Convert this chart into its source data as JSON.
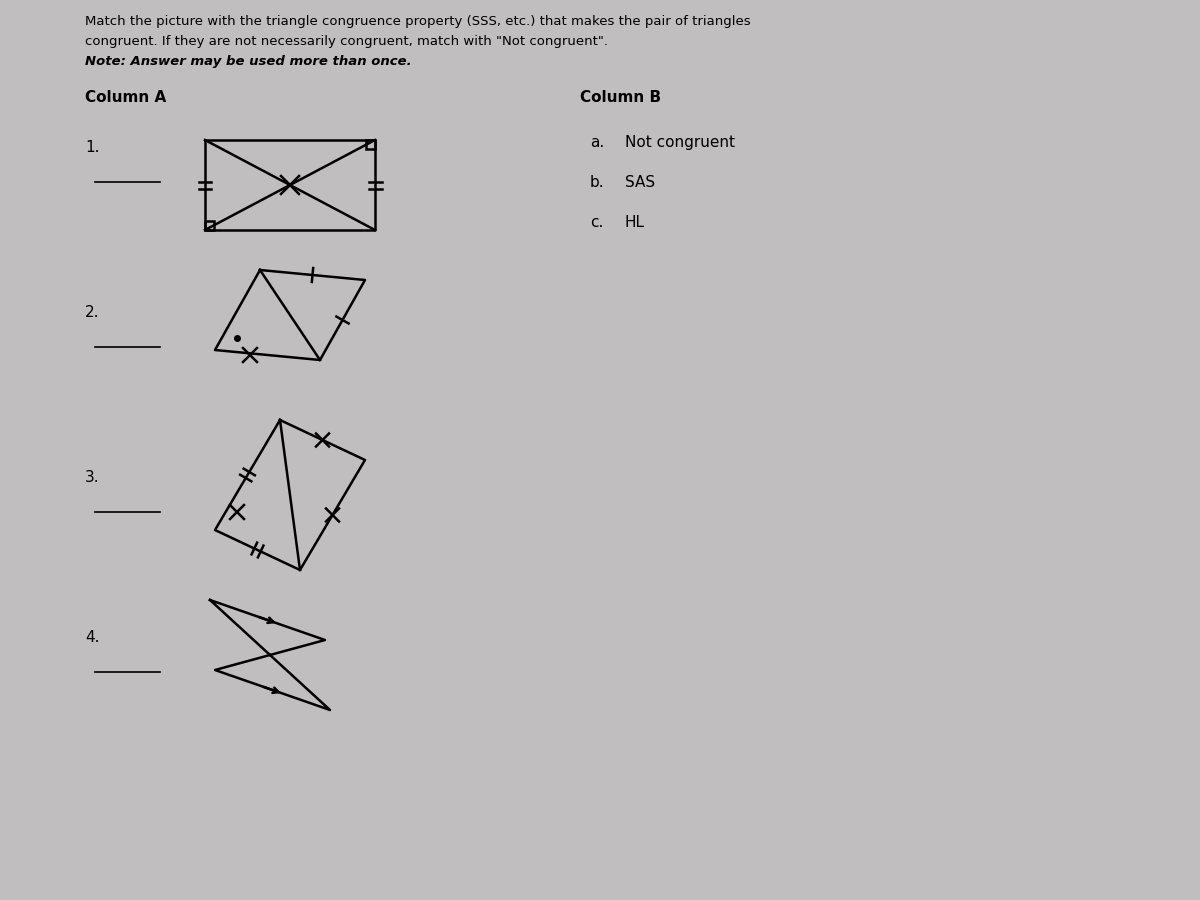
{
  "bg_color": "#c0bebe",
  "title_line1": "Match the picture with the triangle congruence property (SSS, etc.) that makes the pair of triangles",
  "title_line2": "congruent. If they are not necessarily congruent, match with \"Not congruent\".",
  "title_line3": "Note: Answer may be used more than once.",
  "col_a_label": "Column A",
  "col_b_label": "Column B",
  "col_b_items": [
    [
      "a.",
      "Not congruent"
    ],
    [
      "b.",
      "SAS"
    ],
    [
      "c.",
      "HL"
    ]
  ],
  "items": [
    "1.",
    "2.",
    "3.",
    "4."
  ],
  "line_color": "#000000",
  "text_color": "#000000"
}
